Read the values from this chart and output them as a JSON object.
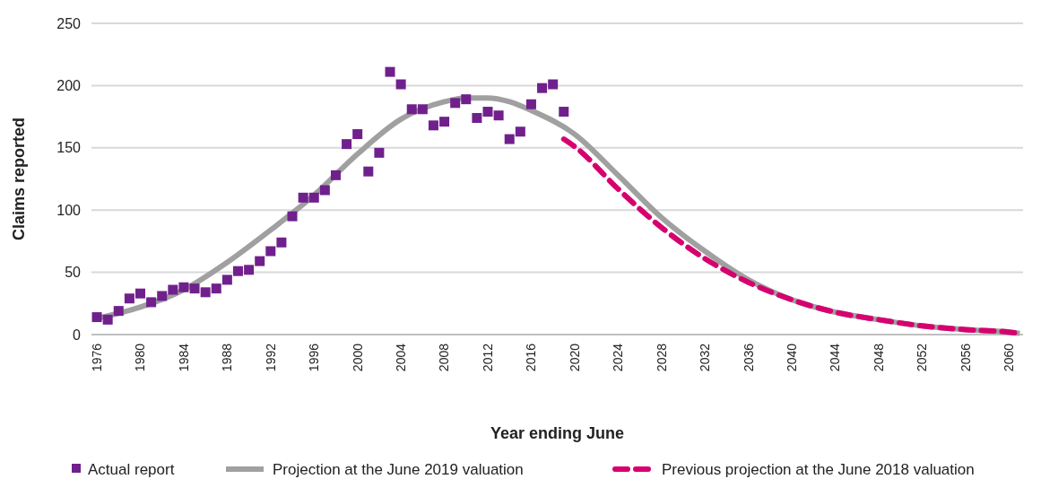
{
  "chart_data": {
    "type": "scatter",
    "xlabel": "Year ending June",
    "ylabel": "Claims reported",
    "xlim": [
      1975.5,
      2061.3
    ],
    "xticks": [
      1976,
      1980,
      1984,
      1988,
      1992,
      1996,
      2000,
      2004,
      2008,
      2012,
      2016,
      2020,
      2024,
      2028,
      2032,
      2036,
      2040,
      2044,
      2048,
      2052,
      2056,
      2060
    ],
    "ylim": [
      0,
      250
    ],
    "yticks": [
      0,
      50,
      100,
      150,
      200,
      250
    ],
    "grid": "y",
    "legend": "bottom",
    "series": [
      {
        "name": "Actual report",
        "marker": "square",
        "color": "#70208c",
        "x": [
          1976,
          1977,
          1978,
          1979,
          1980,
          1981,
          1982,
          1983,
          1984,
          1985,
          1986,
          1987,
          1988,
          1989,
          1990,
          1991,
          1992,
          1993,
          1994,
          1995,
          1996,
          1997,
          1998,
          1999,
          2000,
          2001,
          2002,
          2003,
          2004,
          2005,
          2006,
          2007,
          2008,
          2009,
          2010,
          2011,
          2012,
          2013,
          2014,
          2015,
          2016,
          2017,
          2018,
          2019
        ],
        "values": [
          14,
          12,
          19,
          29,
          33,
          26,
          31,
          36,
          38,
          37,
          34,
          37,
          44,
          51,
          52,
          59,
          67,
          74,
          95,
          110,
          110,
          116,
          128,
          153,
          161,
          131,
          146,
          211,
          201,
          181,
          181,
          168,
          171,
          186,
          189,
          174,
          179,
          176,
          157,
          163,
          185,
          198,
          201,
          179
        ]
      },
      {
        "name": "Projection at the June 2019 valuation",
        "type": "line",
        "line_style": "solid",
        "color": "#a0a0a0",
        "x": [
          1976,
          1980,
          1984,
          1988,
          1992,
          1996,
          2000,
          2004,
          2008,
          2010,
          2012,
          2014,
          2016,
          2020,
          2024,
          2028,
          2032,
          2036,
          2040,
          2044,
          2048,
          2052,
          2056,
          2060,
          2061
        ],
        "values": [
          13,
          22,
          36,
          58,
          84,
          112,
          145,
          173,
          187,
          190,
          190,
          187,
          180,
          161,
          128,
          94,
          67,
          44,
          28,
          18,
          12,
          7,
          4,
          2,
          1
        ]
      },
      {
        "name": "Previous projection at the June 2018 valuation",
        "type": "line",
        "line_style": "dashed",
        "color": "#d6006f",
        "x": [
          2019,
          2020,
          2024,
          2028,
          2032,
          2036,
          2040,
          2044,
          2048,
          2052,
          2056,
          2060,
          2061
        ],
        "values": [
          157,
          151,
          117,
          86,
          61,
          42,
          28,
          18,
          12,
          7,
          4,
          2,
          1
        ]
      }
    ]
  }
}
